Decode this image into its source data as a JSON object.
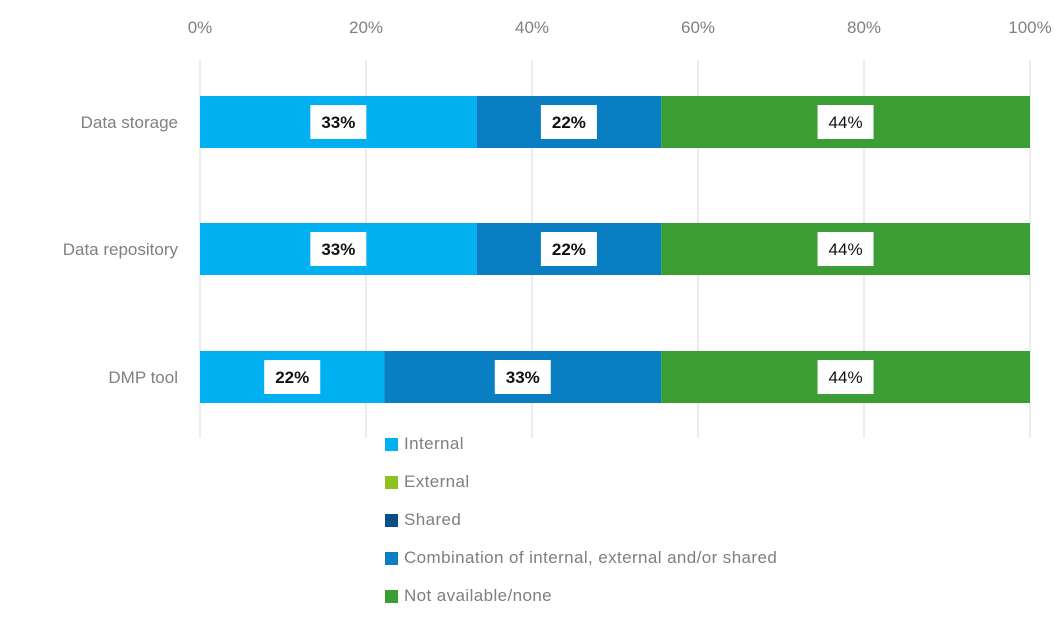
{
  "chart_data": {
    "type": "bar",
    "orientation": "horizontal",
    "stacked": true,
    "percent_scale": true,
    "categories": [
      "Data storage",
      "Data repository",
      "DMP tool"
    ],
    "series": [
      {
        "name": "Internal",
        "color": "#00B0F0",
        "values": [
          33,
          33,
          22
        ],
        "labels": [
          "33%",
          "33%",
          "22%"
        ]
      },
      {
        "name": "External",
        "color": "#8DC21F",
        "values": [
          0,
          0,
          0
        ],
        "labels": [
          "",
          "",
          ""
        ]
      },
      {
        "name": "Shared",
        "color": "#0B4F8A",
        "values": [
          0,
          0,
          0
        ],
        "labels": [
          "",
          "",
          ""
        ]
      },
      {
        "name": "Combination of internal, external and/or shared",
        "color": "#0A7EC2",
        "values": [
          22,
          22,
          33
        ],
        "labels": [
          "22%",
          "22%",
          "33%"
        ]
      },
      {
        "name": "Not available/none",
        "color": "#3A9E35",
        "values": [
          44,
          44,
          44
        ],
        "labels": [
          "44%",
          "44%",
          "44%"
        ]
      }
    ],
    "x_ticks": [
      "0%",
      "20%",
      "40%",
      "60%",
      "80%",
      "100%"
    ],
    "xlim": [
      0,
      100
    ],
    "x_axis_position": "top",
    "grid": true,
    "legend_position": "bottom",
    "title": "",
    "xlabel": "",
    "ylabel": ""
  }
}
